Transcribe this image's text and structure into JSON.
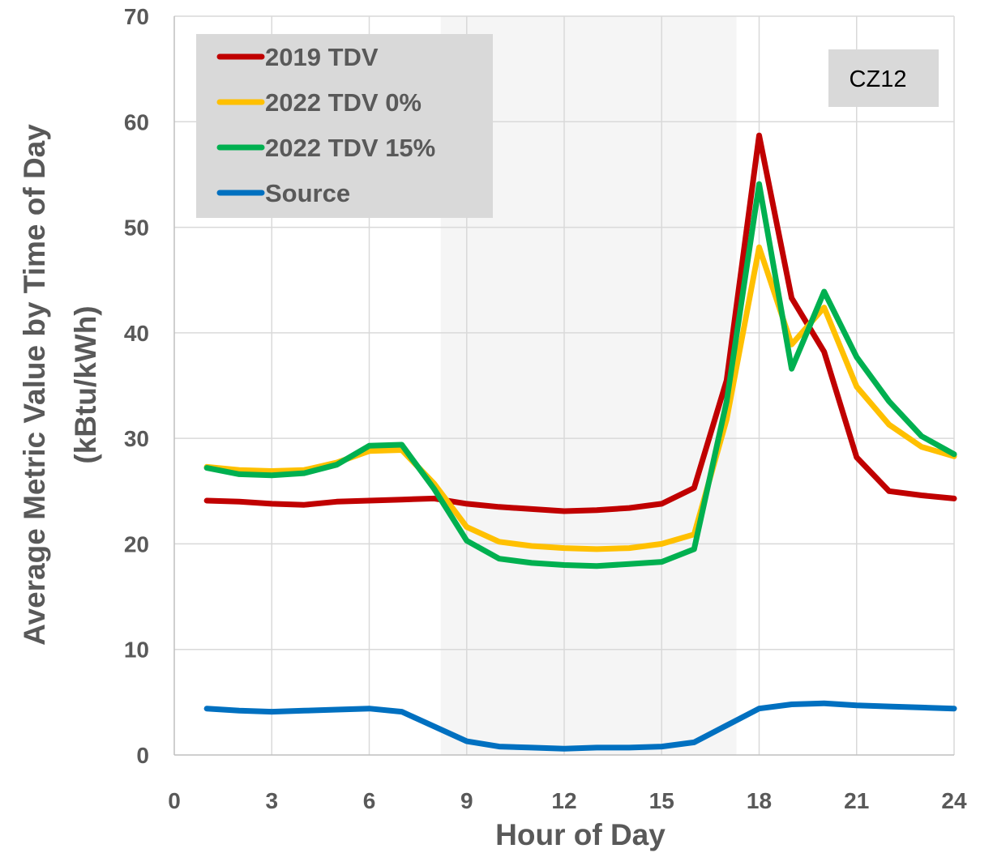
{
  "chart_data": {
    "type": "line",
    "title": "",
    "xlabel": "Hour of Day",
    "ylabel_line1": "Average Metric Value by Time of Day",
    "ylabel_line2": "(kBtu/kWh)",
    "annotation": "CZ12",
    "xlim": [
      0,
      24
    ],
    "ylim": [
      0,
      70
    ],
    "xticks": [
      0,
      3,
      6,
      9,
      12,
      15,
      18,
      21,
      24
    ],
    "yticks": [
      0,
      10,
      20,
      30,
      40,
      50,
      60,
      70
    ],
    "grid": true,
    "legend_position": "top-left",
    "shaded_region": {
      "x_start": 8.2,
      "x_end": 17.3,
      "color": "#f5f5f5"
    },
    "x": [
      1,
      2,
      3,
      4,
      5,
      6,
      7,
      8,
      9,
      10,
      11,
      12,
      13,
      14,
      15,
      16,
      17,
      18,
      19,
      20,
      21,
      22,
      23,
      24
    ],
    "series": [
      {
        "name": "2019 TDV",
        "color": "#c00000",
        "values": [
          24.1,
          24.0,
          23.8,
          23.7,
          24.0,
          24.1,
          24.2,
          24.3,
          23.8,
          23.5,
          23.3,
          23.1,
          23.2,
          23.4,
          23.8,
          25.3,
          35.5,
          58.7,
          43.3,
          38.2,
          28.2,
          25.0,
          24.6,
          24.3
        ]
      },
      {
        "name": "2022 TDV 0%",
        "color": "#ffc000",
        "values": [
          27.3,
          27.0,
          26.9,
          27.0,
          27.7,
          28.8,
          28.9,
          25.7,
          21.6,
          20.2,
          19.8,
          19.6,
          19.5,
          19.6,
          20.0,
          20.9,
          31.8,
          48.1,
          38.9,
          42.4,
          34.9,
          31.3,
          29.2,
          28.3
        ]
      },
      {
        "name": "2022 TDV 15%",
        "color": "#00b050",
        "values": [
          27.2,
          26.6,
          26.5,
          26.7,
          27.5,
          29.3,
          29.4,
          25.2,
          20.3,
          18.6,
          18.2,
          18.0,
          17.9,
          18.1,
          18.3,
          19.5,
          33.5,
          54.1,
          36.6,
          43.9,
          37.7,
          33.5,
          30.2,
          28.5
        ]
      },
      {
        "name": "Source",
        "color": "#0070c0",
        "values": [
          4.4,
          4.2,
          4.1,
          4.2,
          4.3,
          4.4,
          4.1,
          2.7,
          1.3,
          0.8,
          0.7,
          0.6,
          0.7,
          0.7,
          0.8,
          1.2,
          2.8,
          4.4,
          4.8,
          4.9,
          4.7,
          4.6,
          4.5,
          4.4
        ]
      }
    ]
  }
}
